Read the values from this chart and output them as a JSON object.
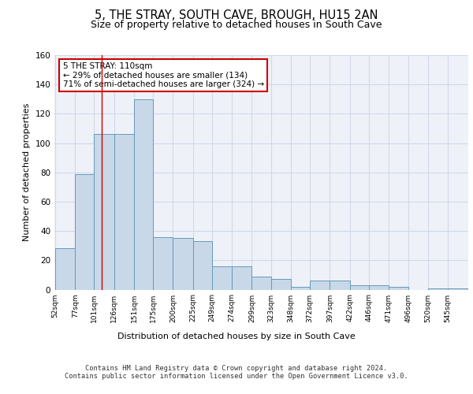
{
  "title": "5, THE STRAY, SOUTH CAVE, BROUGH, HU15 2AN",
  "subtitle": "Size of property relative to detached houses in South Cave",
  "xlabel": "Distribution of detached houses by size in South Cave",
  "ylabel": "Number of detached properties",
  "bar_labels": [
    "52sqm",
    "77sqm",
    "101sqm",
    "126sqm",
    "151sqm",
    "175sqm",
    "200sqm",
    "225sqm",
    "249sqm",
    "274sqm",
    "299sqm",
    "323sqm",
    "348sqm",
    "372sqm",
    "397sqm",
    "422sqm",
    "446sqm",
    "471sqm",
    "496sqm",
    "520sqm",
    "545sqm"
  ],
  "bar_values": [
    28,
    79,
    106,
    106,
    130,
    36,
    35,
    33,
    16,
    16,
    9,
    7,
    2,
    6,
    6,
    3,
    3,
    2,
    0,
    1,
    1
  ],
  "bar_color": "#c8d8e8",
  "bar_edge_color": "#6699bb",
  "grid_color": "#d0d8e8",
  "bg_color": "#eef2f8",
  "annotation_text": "5 THE STRAY: 110sqm\n← 29% of detached houses are smaller (134)\n71% of semi-detached houses are larger (324) →",
  "vline_x": 110,
  "bin_edges": [
    52,
    77,
    101,
    126,
    151,
    175,
    200,
    225,
    249,
    274,
    299,
    323,
    348,
    372,
    397,
    422,
    446,
    471,
    496,
    520,
    545,
    570
  ],
  "ylim": [
    0,
    160
  ],
  "footer_text": "Contains HM Land Registry data © Crown copyright and database right 2024.\nContains public sector information licensed under the Open Government Licence v3.0.",
  "title_fontsize": 10.5,
  "subtitle_fontsize": 9,
  "annotation_box_color": "#ffffff",
  "annotation_box_edge": "#cc0000",
  "vline_color": "#cc0000",
  "yticks": [
    0,
    20,
    40,
    60,
    80,
    100,
    120,
    140,
    160
  ]
}
